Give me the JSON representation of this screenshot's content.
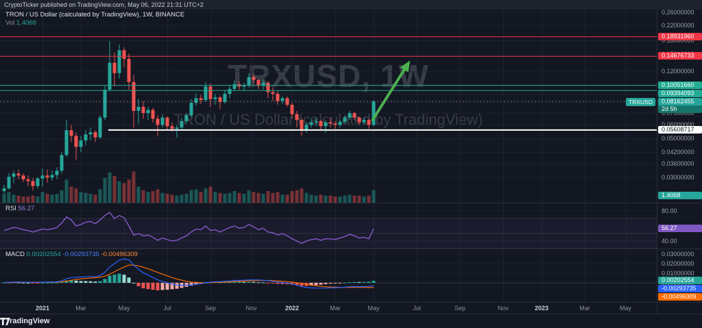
{
  "attribution": "CryptoTicker published on TradingView.com, May 06, 2022 21:31 UTC+2",
  "legend": {
    "symbol": "TRON / US Dollar (calculated by TradingView), 1W, BINANCE",
    "vol_label": "Vol",
    "vol_value": "1.4068",
    "rsi_label": "RSI",
    "rsi_value": "56.27",
    "macd_label": "MACD",
    "macd_values": [
      "0.00202554",
      "-0.00293735",
      "-0.00496309"
    ]
  },
  "watermark": {
    "line1": "TRXUSD, 1W",
    "line2": "TRON / US Dollar (calculated by TradingView)"
  },
  "symbol_tag": "TRXUSD",
  "price_axis": {
    "ticks": [
      0.26,
      0.22,
      0.18,
      0.15,
      0.12,
      0.1,
      0.09,
      0.08,
      0.07,
      0.06,
      0.05,
      0.042,
      0.036,
      0.03
    ],
    "badges": [
      {
        "label": "0.18931960",
        "price": 0.1893196,
        "bg": "#f23645",
        "fg": "#ffffff"
      },
      {
        "label": "0.14676733",
        "price": 0.14676733,
        "bg": "#f23645",
        "fg": "#ffffff"
      },
      {
        "label": "0.10051660",
        "price": 0.1005166,
        "bg": "#22ab94",
        "fg": "#ffffff"
      },
      {
        "label": "0.09394093",
        "price": 0.09394093,
        "bg": "#22ab94",
        "fg": "#ffffff"
      },
      {
        "label": "0.05608717",
        "price": 0.05608717,
        "bg": "#ffffff",
        "fg": "#131722"
      }
    ],
    "last_price": {
      "label": "0.08162455",
      "price": 0.08162455,
      "countdown": "2d 5h",
      "bg": "#26a69a",
      "countdown_bg": "#15756b"
    },
    "volume_badge": "1.4068"
  },
  "rsi_axis": {
    "ticks": [
      80,
      40
    ],
    "badge": {
      "label": "56.27",
      "value": 56.27,
      "bg": "#7e57c2"
    }
  },
  "macd_axis": {
    "ticks": [
      0.03,
      0.02,
      0.01,
      0.0
    ],
    "badges": [
      {
        "label": "0.00202554",
        "value": 0.00202554,
        "bg": "#26a69a"
      },
      {
        "label": "-0.00293735",
        "value": -0.00293735,
        "bg": "#2962ff"
      },
      {
        "label": "-0.00496309",
        "value": -0.00496309,
        "bg": "#ff6d00"
      }
    ]
  },
  "time_axis": [
    {
      "label": "2021",
      "week": 8,
      "year": true
    },
    {
      "label": "Mar",
      "week": 16
    },
    {
      "label": "May",
      "week": 25
    },
    {
      "label": "Jul",
      "week": 34
    },
    {
      "label": "Sep",
      "week": 43
    },
    {
      "label": "Nov",
      "week": 51.5
    },
    {
      "label": "2022",
      "week": 60,
      "year": true
    },
    {
      "label": "Mar",
      "week": 69
    },
    {
      "label": "May",
      "week": 77
    },
    {
      "label": "Jul",
      "week": 86
    },
    {
      "label": "Sep",
      "week": 95
    },
    {
      "label": "Nov",
      "week": 104
    },
    {
      "label": "2023",
      "week": 112,
      "year": true
    },
    {
      "label": "Mar",
      "week": 121
    },
    {
      "label": "May",
      "week": 129.5
    }
  ],
  "footer": {
    "brand": "TradingView"
  },
  "colors": {
    "up": "#26a69a",
    "down": "#ef5350",
    "vol_up": "rgba(38,166,154,0.45)",
    "vol_down": "rgba(239,83,80,0.45)",
    "rsi_line": "#7e57c2",
    "rsi_band": "#787b86",
    "rsi_fill": "rgba(126,87,194,0.07)",
    "macd_line": "#2962ff",
    "signal_line": "#ff6d00",
    "hist_up_strong": "#26a69a",
    "hist_up_weak": "#9ad8d0",
    "hist_down_strong": "#ef5350",
    "hist_down_weak": "#f5a9a7",
    "grid": "#1e222d",
    "zero_line": "#363a45",
    "last_price_line": "#9598a1",
    "arrow": "#4caf50"
  },
  "chart_data": {
    "type": "candlestick",
    "title": "TRON / US Dollar (calculated by TradingView)",
    "symbol": "TRXUSD",
    "interval": "1W",
    "exchange": "BINANCE",
    "start_week": "2020-11-09",
    "note": "weekly OHLCV candles [open,high,low,close,volume-in-billions]; log price axis; RSI(14) and MACD(12,26,9) sub-panes; last bar is week of May 2, 2022 closing at 0.08162455",
    "candles": [
      [
        0.0253,
        0.0275,
        0.0245,
        0.0262,
        1.0
      ],
      [
        0.0262,
        0.032,
        0.0258,
        0.0305,
        1.2
      ],
      [
        0.0305,
        0.033,
        0.028,
        0.0318,
        0.9
      ],
      [
        0.0318,
        0.0335,
        0.0295,
        0.031,
        0.8
      ],
      [
        0.031,
        0.0318,
        0.0285,
        0.0295,
        0.7
      ],
      [
        0.0295,
        0.031,
        0.027,
        0.0288,
        0.7
      ],
      [
        0.0288,
        0.03,
        0.0255,
        0.027,
        0.8
      ],
      [
        0.027,
        0.0305,
        0.0262,
        0.0298,
        0.7
      ],
      [
        0.0298,
        0.034,
        0.0268,
        0.031,
        1.2
      ],
      [
        0.031,
        0.0335,
        0.0282,
        0.0302,
        1.0
      ],
      [
        0.0302,
        0.033,
        0.029,
        0.0312,
        0.9
      ],
      [
        0.0312,
        0.0345,
        0.0295,
        0.033,
        1.0
      ],
      [
        0.033,
        0.042,
        0.0318,
        0.0405,
        1.4
      ],
      [
        0.0405,
        0.064,
        0.0395,
        0.056,
        2.6
      ],
      [
        0.056,
        0.06,
        0.048,
        0.052,
        1.8
      ],
      [
        0.052,
        0.0545,
        0.038,
        0.045,
        1.6
      ],
      [
        0.045,
        0.052,
        0.042,
        0.049,
        1.2
      ],
      [
        0.049,
        0.056,
        0.046,
        0.053,
        1.1
      ],
      [
        0.053,
        0.058,
        0.049,
        0.0545,
        1.0
      ],
      [
        0.0545,
        0.056,
        0.048,
        0.051,
        0.9
      ],
      [
        0.051,
        0.068,
        0.05,
        0.066,
        1.5
      ],
      [
        0.066,
        0.1,
        0.064,
        0.095,
        2.8
      ],
      [
        0.095,
        0.1793,
        0.093,
        0.135,
        3.4
      ],
      [
        0.135,
        0.155,
        0.099,
        0.118,
        3.0
      ],
      [
        0.118,
        0.171,
        0.11,
        0.159,
        2.4
      ],
      [
        0.159,
        0.165,
        0.128,
        0.142,
        2.2
      ],
      [
        0.142,
        0.152,
        0.095,
        0.105,
        2.6
      ],
      [
        0.105,
        0.115,
        0.058,
        0.072,
        3.5
      ],
      [
        0.072,
        0.084,
        0.061,
        0.076,
        1.8
      ],
      [
        0.076,
        0.082,
        0.065,
        0.07,
        1.4
      ],
      [
        0.07,
        0.076,
        0.064,
        0.073,
        1.2
      ],
      [
        0.073,
        0.075,
        0.062,
        0.065,
        1.3
      ],
      [
        0.065,
        0.068,
        0.052,
        0.06,
        1.5
      ],
      [
        0.06,
        0.069,
        0.058,
        0.066,
        1.1
      ],
      [
        0.066,
        0.067,
        0.056,
        0.059,
        1.0
      ],
      [
        0.059,
        0.062,
        0.055,
        0.057,
        0.9
      ],
      [
        0.057,
        0.06,
        0.051,
        0.058,
        0.8
      ],
      [
        0.058,
        0.066,
        0.056,
        0.063,
        0.9
      ],
      [
        0.063,
        0.07,
        0.061,
        0.068,
        1.0
      ],
      [
        0.068,
        0.084,
        0.066,
        0.08,
        1.4
      ],
      [
        0.08,
        0.09,
        0.077,
        0.085,
        1.5
      ],
      [
        0.085,
        0.089,
        0.079,
        0.083,
        1.2
      ],
      [
        0.083,
        0.105,
        0.081,
        0.099,
        1.6
      ],
      [
        0.099,
        0.103,
        0.076,
        0.084,
        1.8
      ],
      [
        0.084,
        0.09,
        0.078,
        0.086,
        1.2
      ],
      [
        0.086,
        0.088,
        0.074,
        0.081,
        1.1
      ],
      [
        0.081,
        0.095,
        0.079,
        0.09,
        1.0
      ],
      [
        0.09,
        0.1,
        0.085,
        0.096,
        1.1
      ],
      [
        0.096,
        0.107,
        0.093,
        0.102,
        1.3
      ],
      [
        0.102,
        0.106,
        0.095,
        0.099,
        1.1
      ],
      [
        0.099,
        0.104,
        0.093,
        0.101,
        1.0
      ],
      [
        0.101,
        0.118,
        0.098,
        0.112,
        1.4
      ],
      [
        0.112,
        0.116,
        0.103,
        0.108,
        1.2
      ],
      [
        0.108,
        0.11,
        0.096,
        0.1,
        1.1
      ],
      [
        0.1,
        0.108,
        0.095,
        0.104,
        1.0
      ],
      [
        0.104,
        0.106,
        0.085,
        0.092,
        1.3
      ],
      [
        0.092,
        0.098,
        0.082,
        0.09,
        1.1
      ],
      [
        0.09,
        0.093,
        0.078,
        0.082,
        1.2
      ],
      [
        0.082,
        0.088,
        0.079,
        0.085,
        0.9
      ],
      [
        0.085,
        0.087,
        0.076,
        0.078,
        0.9
      ],
      [
        0.078,
        0.08,
        0.065,
        0.069,
        1.3
      ],
      [
        0.069,
        0.072,
        0.058,
        0.064,
        1.4
      ],
      [
        0.064,
        0.066,
        0.052,
        0.056,
        1.6
      ],
      [
        0.056,
        0.062,
        0.054,
        0.06,
        1.1
      ],
      [
        0.06,
        0.065,
        0.058,
        0.062,
        0.9
      ],
      [
        0.062,
        0.066,
        0.059,
        0.063,
        0.8
      ],
      [
        0.063,
        0.064,
        0.056,
        0.059,
        0.9
      ],
      [
        0.059,
        0.064,
        0.054,
        0.062,
        0.8
      ],
      [
        0.062,
        0.066,
        0.058,
        0.061,
        0.8
      ],
      [
        0.061,
        0.063,
        0.057,
        0.06,
        0.7
      ],
      [
        0.06,
        0.064,
        0.058,
        0.0625,
        0.7
      ],
      [
        0.0625,
        0.068,
        0.061,
        0.066,
        0.8
      ],
      [
        0.066,
        0.072,
        0.064,
        0.07,
        0.9
      ],
      [
        0.07,
        0.071,
        0.064,
        0.066,
        0.8
      ],
      [
        0.066,
        0.067,
        0.06,
        0.062,
        0.8
      ],
      [
        0.062,
        0.066,
        0.06,
        0.064,
        0.7
      ],
      [
        0.064,
        0.065,
        0.057,
        0.06,
        0.8
      ],
      [
        0.06,
        0.083,
        0.059,
        0.0816,
        1.4068
      ]
    ],
    "rsi": [
      54,
      56,
      58,
      57,
      55,
      54,
      52,
      54,
      56,
      55,
      56,
      58,
      64,
      72,
      68,
      60,
      62,
      65,
      66,
      63,
      68,
      74,
      78,
      70,
      74,
      71,
      60,
      48,
      50,
      47,
      48,
      45,
      41,
      44,
      42,
      40,
      41,
      44,
      47,
      52,
      56,
      55,
      60,
      54,
      55,
      52,
      55,
      58,
      60,
      57,
      58,
      62,
      59,
      55,
      57,
      52,
      51,
      48,
      50,
      47,
      43,
      40,
      37,
      40,
      42,
      43,
      41,
      43,
      43,
      42,
      44,
      46,
      49,
      47,
      44,
      45,
      43,
      56.27
    ],
    "macd": [
      0.0004,
      0.0006,
      0.0008,
      0.0008,
      0.0007,
      0.0006,
      0.0005,
      0.0005,
      0.0007,
      0.0008,
      0.0009,
      0.0011,
      0.002,
      0.0042,
      0.0055,
      0.0058,
      0.006,
      0.0064,
      0.0066,
      0.0066,
      0.0075,
      0.011,
      0.0165,
      0.02,
      0.0235,
      0.025,
      0.024,
      0.0185,
      0.014,
      0.0105,
      0.008,
      0.0055,
      0.003,
      0.0015,
      0.0,
      -0.0012,
      -0.0022,
      -0.0026,
      -0.0026,
      -0.0022,
      -0.0015,
      -0.0009,
      0.0001,
      0.0007,
      0.0011,
      0.0012,
      0.0015,
      0.0019,
      0.0024,
      0.0026,
      0.0027,
      0.003,
      0.0031,
      0.0029,
      0.0027,
      0.0022,
      0.0016,
      0.0008,
      0.0003,
      -0.0003,
      -0.0012,
      -0.0024,
      -0.004,
      -0.0049,
      -0.0053,
      -0.0055,
      -0.0056,
      -0.0055,
      -0.0053,
      -0.0051,
      -0.0049,
      -0.0045,
      -0.0041,
      -0.0039,
      -0.004,
      -0.0039,
      -0.0038,
      -0.00293735
    ],
    "signal": [
      0.0002,
      0.0003,
      0.0004,
      0.0005,
      0.0006,
      0.0006,
      0.0006,
      0.0006,
      0.0006,
      0.0007,
      0.0007,
      0.0008,
      0.001,
      0.0018,
      0.0027,
      0.0035,
      0.0041,
      0.0046,
      0.005,
      0.0053,
      0.0058,
      0.007,
      0.009,
      0.0115,
      0.014,
      0.0165,
      0.0185,
      0.0185,
      0.0176,
      0.0162,
      0.0146,
      0.0128,
      0.0109,
      0.009,
      0.0072,
      0.0055,
      0.004,
      0.0027,
      0.0016,
      0.0008,
      0.0004,
      0.0001,
      0.0001,
      0.0002,
      0.0004,
      0.0006,
      0.0008,
      0.001,
      0.0013,
      0.0015,
      0.0018,
      0.002,
      0.0022,
      0.0024,
      0.0024,
      0.0024,
      0.0022,
      0.0019,
      0.0016,
      0.0012,
      0.0007,
      0.0001,
      -0.0007,
      -0.0016,
      -0.0024,
      -0.0031,
      -0.0037,
      -0.0041,
      -0.0044,
      -0.0046,
      -0.0047,
      -0.0047,
      -0.0047,
      -0.0047,
      -0.0048,
      -0.0048,
      -0.0049,
      -0.00496309
    ],
    "levels": [
      {
        "price": 0.1893196,
        "color": "#f23645",
        "width": 1
      },
      {
        "price": 0.14676733,
        "color": "#f23645",
        "width": 1
      },
      {
        "price": 0.1005166,
        "color": "#22ab94",
        "width": 1
      },
      {
        "price": 0.09394093,
        "color": "#22ab94",
        "width": 1
      },
      {
        "price": 0.05608717,
        "color": "#ffffff",
        "width": 2,
        "from_week": 21.7
      }
    ],
    "arrow": {
      "from_week": 76.8,
      "from_price": 0.064,
      "to_week": 84.6,
      "to_price": 0.139
    }
  }
}
